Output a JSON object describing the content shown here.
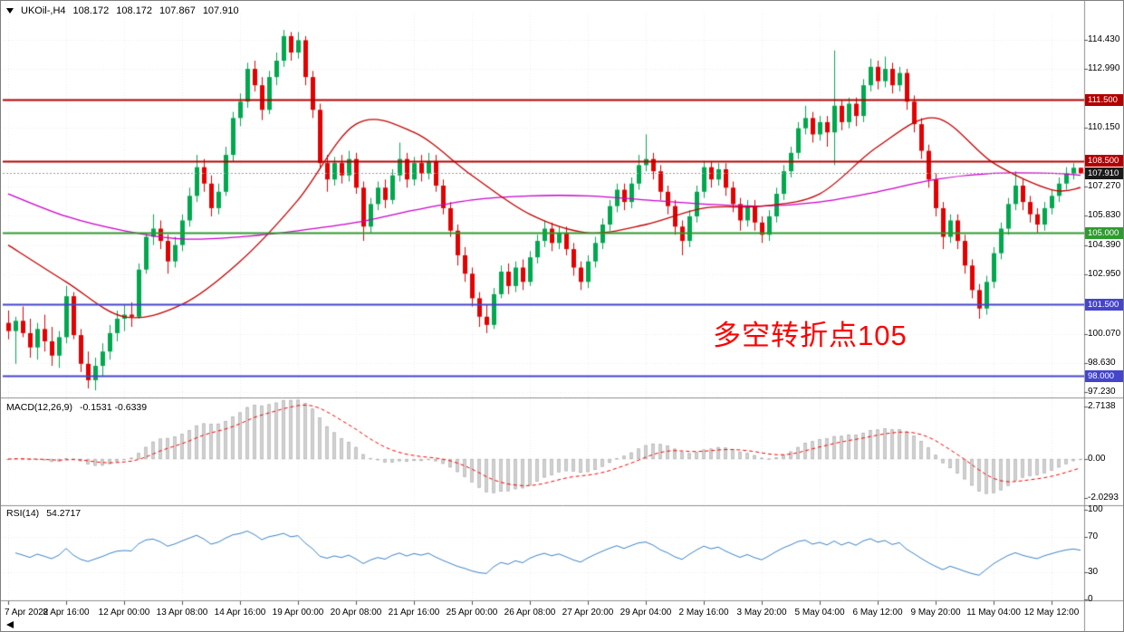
{
  "header": {
    "symbol": "UKOil-,H4",
    "open": "108.172",
    "high": "108.172",
    "low": "107.867",
    "close": "107.910"
  },
  "annotation": {
    "text": "多空转折点105",
    "color": "#ff0000"
  },
  "colors": {
    "bull": "#00a84e",
    "bear": "#e30000",
    "ma_fast": "#c40000",
    "ma_slow": "#cc00cc",
    "macd_hist_fill": "#d6d6d6",
    "macd_hist_stroke": "#ababab",
    "macd_signal": "#ff0000",
    "rsi_line": "#3b82c4",
    "grid": "#ececec",
    "separator": "#8c8c8c",
    "axis_text": "#000000",
    "current_price_line": "#999999"
  },
  "chart_data": {
    "type": "candlestick",
    "symbol": "UKOil-",
    "timeframe": "H4",
    "panes": {
      "main": {
        "price_min": 97.0,
        "price_max": 115.7
      },
      "macd": {
        "min": -2.35,
        "max": 3.05
      },
      "rsi": {
        "min": 0,
        "max": 103
      }
    },
    "candles": [
      [
        100.6,
        101.2,
        99.8,
        100.2
      ],
      [
        100.2,
        100.9,
        98.6,
        100.7
      ],
      [
        100.7,
        101.4,
        99.9,
        100.1
      ],
      [
        100.1,
        100.8,
        98.9,
        99.4
      ],
      [
        99.4,
        100.6,
        98.8,
        100.3
      ],
      [
        100.3,
        101.0,
        99.2,
        99.7
      ],
      [
        99.7,
        100.4,
        98.5,
        99.0
      ],
      [
        99.0,
        100.2,
        98.4,
        99.9
      ],
      [
        99.9,
        102.4,
        99.6,
        101.9
      ],
      [
        101.9,
        102.1,
        99.8,
        100.0
      ],
      [
        100.0,
        100.3,
        98.2,
        98.6
      ],
      [
        98.6,
        99.2,
        97.4,
        97.8
      ],
      [
        97.8,
        98.9,
        97.3,
        98.5
      ],
      [
        98.5,
        99.6,
        98.0,
        99.2
      ],
      [
        99.2,
        100.5,
        98.8,
        100.1
      ],
      [
        100.1,
        101.2,
        99.7,
        100.8
      ],
      [
        100.8,
        101.5,
        100.2,
        101.0
      ],
      [
        101.0,
        101.6,
        100.4,
        100.9
      ],
      [
        100.9,
        103.5,
        100.8,
        103.2
      ],
      [
        103.2,
        105.0,
        103.0,
        104.8
      ],
      [
        104.8,
        105.9,
        104.4,
        105.2
      ],
      [
        105.2,
        105.6,
        104.2,
        104.6
      ],
      [
        104.6,
        104.9,
        103.0,
        103.6
      ],
      [
        103.6,
        104.8,
        103.3,
        104.4
      ],
      [
        104.4,
        105.9,
        104.1,
        105.6
      ],
      [
        105.6,
        107.2,
        105.3,
        106.8
      ],
      [
        106.8,
        108.8,
        106.5,
        108.2
      ],
      [
        108.2,
        108.6,
        107.0,
        107.4
      ],
      [
        107.4,
        107.8,
        105.8,
        106.2
      ],
      [
        106.2,
        107.4,
        105.9,
        107.0
      ],
      [
        107.0,
        109.2,
        106.8,
        108.8
      ],
      [
        108.8,
        110.9,
        108.5,
        110.6
      ],
      [
        110.6,
        111.8,
        110.2,
        111.4
      ],
      [
        111.4,
        113.3,
        111.1,
        113.0
      ],
      [
        113.0,
        113.4,
        111.9,
        112.2
      ],
      [
        112.2,
        112.6,
        110.5,
        111.0
      ],
      [
        111.0,
        112.9,
        110.8,
        112.6
      ],
      [
        112.6,
        113.8,
        112.2,
        113.4
      ],
      [
        113.4,
        114.9,
        113.1,
        114.6
      ],
      [
        114.6,
        114.8,
        113.4,
        113.8
      ],
      [
        113.8,
        114.8,
        113.5,
        114.4
      ],
      [
        114.4,
        114.6,
        112.2,
        112.6
      ],
      [
        112.6,
        112.9,
        110.6,
        111.0
      ],
      [
        111.0,
        111.3,
        108.1,
        108.4
      ],
      [
        108.4,
        108.8,
        107.0,
        107.6
      ],
      [
        107.6,
        108.7,
        107.3,
        108.4
      ],
      [
        108.4,
        108.8,
        107.4,
        107.8
      ],
      [
        107.8,
        109.0,
        107.5,
        108.6
      ],
      [
        108.6,
        108.9,
        106.9,
        107.2
      ],
      [
        107.2,
        107.5,
        104.6,
        105.3
      ],
      [
        105.3,
        106.7,
        105.0,
        106.4
      ],
      [
        106.4,
        107.5,
        106.1,
        107.2
      ],
      [
        107.2,
        107.6,
        106.2,
        106.6
      ],
      [
        106.6,
        108.1,
        106.4,
        107.8
      ],
      [
        107.8,
        109.4,
        107.5,
        108.6
      ],
      [
        108.6,
        108.9,
        107.2,
        107.6
      ],
      [
        107.6,
        108.7,
        107.3,
        108.4
      ],
      [
        108.4,
        108.8,
        107.5,
        107.9
      ],
      [
        107.9,
        108.9,
        107.6,
        108.5
      ],
      [
        108.5,
        108.8,
        107.0,
        107.3
      ],
      [
        107.3,
        107.6,
        105.9,
        106.2
      ],
      [
        106.2,
        106.5,
        104.8,
        105.1
      ],
      [
        105.1,
        105.4,
        103.4,
        103.9
      ],
      [
        103.9,
        104.3,
        102.6,
        103.0
      ],
      [
        103.0,
        103.3,
        101.4,
        101.8
      ],
      [
        101.8,
        102.1,
        100.4,
        100.9
      ],
      [
        100.9,
        101.5,
        100.1,
        100.5
      ],
      [
        100.5,
        102.3,
        100.3,
        102.0
      ],
      [
        102.0,
        103.4,
        101.8,
        103.1
      ],
      [
        103.1,
        103.5,
        102.0,
        102.4
      ],
      [
        102.4,
        103.6,
        102.1,
        103.3
      ],
      [
        103.3,
        103.7,
        102.2,
        102.6
      ],
      [
        102.6,
        104.1,
        102.4,
        103.8
      ],
      [
        103.8,
        104.9,
        103.5,
        104.6
      ],
      [
        104.6,
        105.6,
        104.3,
        105.2
      ],
      [
        105.2,
        105.5,
        104.1,
        104.5
      ],
      [
        104.5,
        105.3,
        104.2,
        105.0
      ],
      [
        105.0,
        105.3,
        103.9,
        104.2
      ],
      [
        104.2,
        104.5,
        102.9,
        103.3
      ],
      [
        103.3,
        103.6,
        102.2,
        102.6
      ],
      [
        102.6,
        103.9,
        102.3,
        103.6
      ],
      [
        103.6,
        104.8,
        103.3,
        104.5
      ],
      [
        104.5,
        105.7,
        104.2,
        105.4
      ],
      [
        105.4,
        106.6,
        105.1,
        106.3
      ],
      [
        106.3,
        107.4,
        106.0,
        107.1
      ],
      [
        107.1,
        107.4,
        106.1,
        106.5
      ],
      [
        106.5,
        107.7,
        106.2,
        107.4
      ],
      [
        107.4,
        108.8,
        107.1,
        108.3
      ],
      [
        108.3,
        109.8,
        108.0,
        108.6
      ],
      [
        108.6,
        108.9,
        107.6,
        108.0
      ],
      [
        108.0,
        108.3,
        106.6,
        107.0
      ],
      [
        107.0,
        107.3,
        105.9,
        106.3
      ],
      [
        106.3,
        106.6,
        104.9,
        105.3
      ],
      [
        105.3,
        105.6,
        103.9,
        104.6
      ],
      [
        104.6,
        106.1,
        104.3,
        105.8
      ],
      [
        105.8,
        107.3,
        105.5,
        107.0
      ],
      [
        107.0,
        108.5,
        106.7,
        108.2
      ],
      [
        108.2,
        108.5,
        107.2,
        107.6
      ],
      [
        107.6,
        108.4,
        107.3,
        108.1
      ],
      [
        108.1,
        108.4,
        106.8,
        107.2
      ],
      [
        107.2,
        107.5,
        106.0,
        106.4
      ],
      [
        106.4,
        106.7,
        105.1,
        105.6
      ],
      [
        105.6,
        106.6,
        105.3,
        106.3
      ],
      [
        106.3,
        106.6,
        105.1,
        105.5
      ],
      [
        105.5,
        105.8,
        104.5,
        104.9
      ],
      [
        104.9,
        106.1,
        104.6,
        105.8
      ],
      [
        105.8,
        107.2,
        105.5,
        106.9
      ],
      [
        106.9,
        108.3,
        106.6,
        108.0
      ],
      [
        108.0,
        109.2,
        107.7,
        108.9
      ],
      [
        108.9,
        110.4,
        108.6,
        110.1
      ],
      [
        110.1,
        111.2,
        109.8,
        110.6
      ],
      [
        110.6,
        110.9,
        109.4,
        109.8
      ],
      [
        109.8,
        110.7,
        109.5,
        110.4
      ],
      [
        110.4,
        110.7,
        109.2,
        109.9
      ],
      [
        109.9,
        113.9,
        108.3,
        111.2
      ],
      [
        111.2,
        111.5,
        110.0,
        110.4
      ],
      [
        110.4,
        111.6,
        110.1,
        111.3
      ],
      [
        111.3,
        111.6,
        110.2,
        110.7
      ],
      [
        110.7,
        112.5,
        110.4,
        112.2
      ],
      [
        112.2,
        113.5,
        111.9,
        113.1
      ],
      [
        113.1,
        113.4,
        112.0,
        112.4
      ],
      [
        112.4,
        113.6,
        112.1,
        113.0
      ],
      [
        113.0,
        113.3,
        111.8,
        112.2
      ],
      [
        112.2,
        113.1,
        111.9,
        112.8
      ],
      [
        112.8,
        113.0,
        111.0,
        111.4
      ],
      [
        111.4,
        111.7,
        109.9,
        110.3
      ],
      [
        110.3,
        110.6,
        108.6,
        109.0
      ],
      [
        109.0,
        109.3,
        107.2,
        107.6
      ],
      [
        107.6,
        107.9,
        105.8,
        106.2
      ],
      [
        106.2,
        106.5,
        104.2,
        104.8
      ],
      [
        104.8,
        105.9,
        104.5,
        105.6
      ],
      [
        105.6,
        105.9,
        104.2,
        104.6
      ],
      [
        104.6,
        104.9,
        103.0,
        103.4
      ],
      [
        103.4,
        103.7,
        101.8,
        102.2
      ],
      [
        102.2,
        102.5,
        100.8,
        101.3
      ],
      [
        101.3,
        102.9,
        101.0,
        102.6
      ],
      [
        102.6,
        104.3,
        102.3,
        104.0
      ],
      [
        104.0,
        105.5,
        103.7,
        105.2
      ],
      [
        105.2,
        106.7,
        104.9,
        106.4
      ],
      [
        106.4,
        108.0,
        106.1,
        107.3
      ],
      [
        107.3,
        107.6,
        106.1,
        106.5
      ],
      [
        106.5,
        106.8,
        105.5,
        105.9
      ],
      [
        105.9,
        106.2,
        105.0,
        105.4
      ],
      [
        105.4,
        106.5,
        105.1,
        106.2
      ],
      [
        106.2,
        107.1,
        105.9,
        106.8
      ],
      [
        106.8,
        107.7,
        106.5,
        107.4
      ],
      [
        107.4,
        108.2,
        107.1,
        107.9
      ],
      [
        107.9,
        108.4,
        107.6,
        108.172
      ],
      [
        108.172,
        108.172,
        107.867,
        107.91
      ]
    ],
    "time_labels": [
      {
        "i": 0,
        "label": "7 Apr 2022"
      },
      {
        "i": 8,
        "label": "8 Apr 16:00"
      },
      {
        "i": 16,
        "label": "12 Apr 00:00"
      },
      {
        "i": 24,
        "label": "13 Apr 08:00"
      },
      {
        "i": 32,
        "label": "14 Apr 16:00"
      },
      {
        "i": 40,
        "label": "19 Apr 00:00"
      },
      {
        "i": 48,
        "label": "20 Apr 08:00"
      },
      {
        "i": 56,
        "label": "21 Apr 16:00"
      },
      {
        "i": 64,
        "label": "25 Apr 00:00"
      },
      {
        "i": 72,
        "label": "26 Apr 08:00"
      },
      {
        "i": 80,
        "label": "27 Apr 20:00"
      },
      {
        "i": 88,
        "label": "29 Apr 04:00"
      },
      {
        "i": 96,
        "label": "2 May 16:00"
      },
      {
        "i": 104,
        "label": "3 May 20:00"
      },
      {
        "i": 112,
        "label": "5 May 04:00"
      },
      {
        "i": 120,
        "label": "6 May 12:00"
      },
      {
        "i": 128,
        "label": "9 May 20:00"
      },
      {
        "i": 136,
        "label": "11 May 04:00"
      },
      {
        "i": 144,
        "label": "12 May 12:00"
      }
    ],
    "yticks": [
      {
        "label": "114.430",
        "value": 114.43
      },
      {
        "label": "112.990",
        "value": 112.99
      },
      {
        "label": "110.150",
        "value": 110.15
      },
      {
        "label": "107.270",
        "value": 107.27
      },
      {
        "label": "105.830",
        "value": 105.83
      },
      {
        "label": "104.390",
        "value": 104.39
      },
      {
        "label": "102.950",
        "value": 102.95
      },
      {
        "label": "100.070",
        "value": 100.07
      },
      {
        "label": "98.630",
        "value": 98.63
      },
      {
        "label": "97.230",
        "value": 97.23
      }
    ],
    "badges": [
      {
        "label": "111.500",
        "value": 111.5,
        "bg": "#b30000",
        "kind": "hline"
      },
      {
        "label": "108.500",
        "value": 108.5,
        "bg": "#b30000",
        "kind": "hline"
      },
      {
        "label": "107.910",
        "value": 107.91,
        "bg": "#1a1a1a",
        "kind": "price"
      },
      {
        "label": "105.000",
        "value": 105.0,
        "bg": "#2e9b2e",
        "kind": "hline"
      },
      {
        "label": "101.500",
        "value": 101.5,
        "bg": "#4444cc",
        "kind": "hline"
      },
      {
        "label": "98.000",
        "value": 98.0,
        "bg": "#4444cc",
        "kind": "hline"
      }
    ],
    "hlines": [
      {
        "price": 111.5,
        "color": "#b30000",
        "width": 2
      },
      {
        "price": 108.5,
        "color": "#b30000",
        "width": 2
      },
      {
        "price": 105.0,
        "color": "#2e9b2e",
        "width": 2
      },
      {
        "price": 101.5,
        "color": "#4444cc",
        "width": 2
      },
      {
        "price": 98.0,
        "color": "#4444cc",
        "width": 2
      }
    ],
    "current_price": 107.91,
    "ma_fast": {
      "step": 8,
      "values": [
        104.4,
        102.6,
        100.9,
        101.5,
        103.6,
        106.6,
        110.3,
        109.9,
        107.8,
        105.9,
        105.0,
        105.4,
        106.2,
        106.3,
        106.9,
        109.2,
        110.6,
        108.4,
        107.1,
        107.2
      ]
    },
    "ma_slow": {
      "step": 8,
      "values": [
        106.9,
        105.8,
        105.1,
        104.7,
        104.8,
        105.1,
        105.5,
        106.1,
        106.6,
        106.8,
        106.8,
        106.6,
        106.4,
        106.3,
        106.5,
        107.0,
        107.6,
        107.9,
        107.9,
        107.8
      ]
    },
    "macd": {
      "label": "MACD(12,26,9)",
      "display": "-0.1531 -0.6339",
      "params": [
        12,
        26,
        9
      ],
      "yticks": [
        {
          "label": "2.7138",
          "value": 2.7138
        },
        {
          "label": "0.00",
          "value": 0
        },
        {
          "label": "-2.0293",
          "value": -2.0293
        }
      ]
    },
    "rsi": {
      "label": "RSI(14)",
      "display": "54.2717",
      "period": 14,
      "levels": [
        70,
        30
      ],
      "yticks": [
        {
          "label": "100",
          "value": 100
        },
        {
          "label": "70",
          "value": 70
        },
        {
          "label": "30",
          "value": 30
        },
        {
          "label": "0",
          "value": 0
        }
      ]
    }
  }
}
